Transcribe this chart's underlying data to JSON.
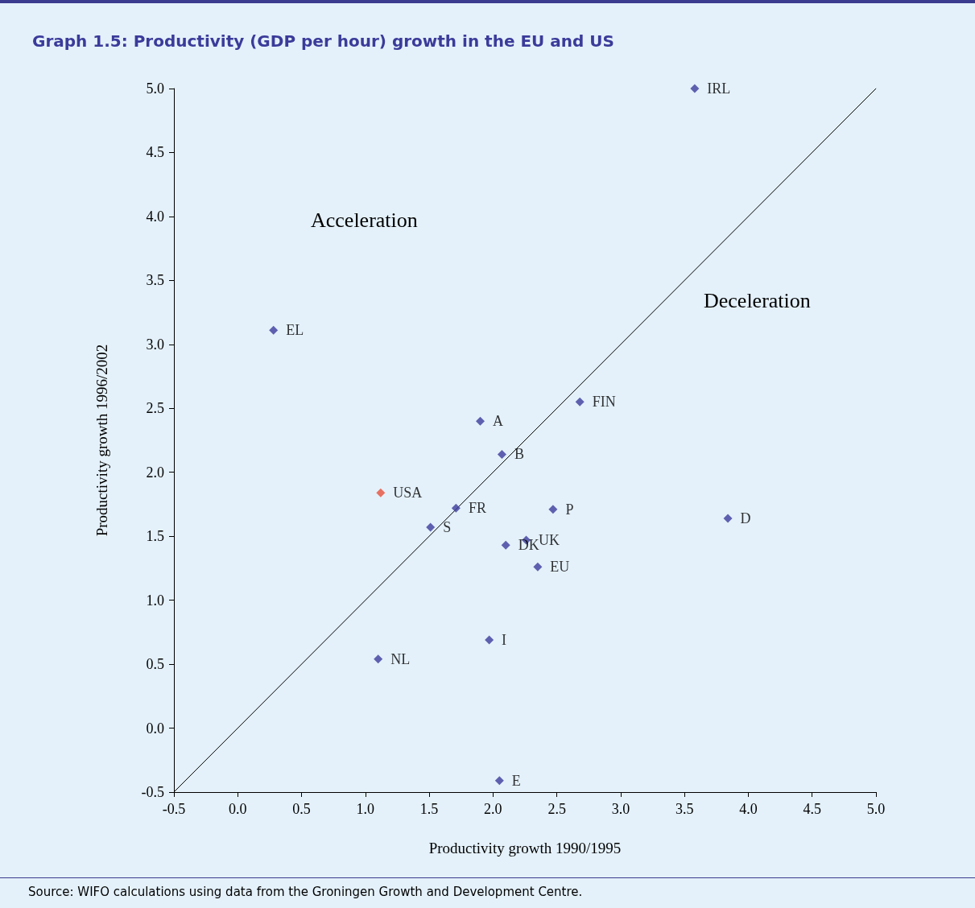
{
  "chart_data": {
    "type": "scatter",
    "title": "Graph 1.5: Productivity (GDP per hour) growth in the EU and US",
    "xlabel": "Productivity growth 1990/1995",
    "ylabel": "Productivity growth 1996/2002",
    "annotations": [
      "Acceleration",
      "Deceleration",
      "Source: WIFO calculations using data from the Groningen Growth and Development Centre."
    ],
    "xlim": [
      -0.5,
      5.0
    ],
    "ylim": [
      -0.5,
      5.0
    ],
    "xticks": [
      {
        "value": -0.5,
        "label": "-0.5"
      },
      {
        "value": 0,
        "label": "0.0"
      },
      {
        "value": 0.5,
        "label": "0.5"
      },
      {
        "value": 1,
        "label": "1.0"
      },
      {
        "value": 1.5,
        "label": "1.5"
      },
      {
        "value": 2,
        "label": "2.0"
      },
      {
        "value": 2.5,
        "label": "2.5"
      },
      {
        "value": 3,
        "label": "3.0"
      },
      {
        "value": 3.5,
        "label": "3.5"
      },
      {
        "value": 4,
        "label": "4.0"
      },
      {
        "value": 4.5,
        "label": "4.5"
      },
      {
        "value": 5,
        "label": "5.0"
      }
    ],
    "yticks": [
      {
        "value": -0.5,
        "label": "-0.5"
      },
      {
        "value": 0,
        "label": "0.0"
      },
      {
        "value": 0.5,
        "label": "0.5"
      },
      {
        "value": 1,
        "label": "1.0"
      },
      {
        "value": 1.5,
        "label": "1.5"
      },
      {
        "value": 2,
        "label": "2.0"
      },
      {
        "value": 2.5,
        "label": "2.5"
      },
      {
        "value": 3,
        "label": "3.0"
      },
      {
        "value": 3.5,
        "label": "3.5"
      },
      {
        "value": 4,
        "label": "4.0"
      },
      {
        "value": 4.5,
        "label": "4.5"
      },
      {
        "value": 5,
        "label": "5.0"
      }
    ],
    "grid": false,
    "legend": false,
    "marker": "diamond",
    "series": [
      {
        "name": "IRL",
        "color": "#3c3c9c",
        "x": [
          3.58
        ],
        "values": [
          5.0
        ]
      },
      {
        "name": "EL",
        "color": "#3c3c9c",
        "x": [
          0.28
        ],
        "values": [
          3.11
        ]
      },
      {
        "name": "A",
        "color": "#3c3c9c",
        "x": [
          1.9
        ],
        "values": [
          2.4
        ]
      },
      {
        "name": "FIN",
        "color": "#3c3c9c",
        "x": [
          2.68
        ],
        "values": [
          2.55
        ]
      },
      {
        "name": "B",
        "color": "#3c3c9c",
        "x": [
          2.07
        ],
        "values": [
          2.14
        ]
      },
      {
        "name": "USA",
        "color": "#e8503a",
        "x": [
          1.12
        ],
        "values": [
          1.84
        ]
      },
      {
        "name": "FR",
        "color": "#3c3c9c",
        "x": [
          1.71
        ],
        "values": [
          1.72
        ]
      },
      {
        "name": "P",
        "color": "#3c3c9c",
        "x": [
          2.47
        ],
        "values": [
          1.71
        ]
      },
      {
        "name": "D",
        "color": "#3c3c9c",
        "x": [
          3.84
        ],
        "values": [
          1.64
        ]
      },
      {
        "name": "S",
        "color": "#3c3c9c",
        "x": [
          1.51
        ],
        "values": [
          1.57
        ]
      },
      {
        "name": "UK",
        "color": "#3c3c9c",
        "x": [
          2.26
        ],
        "values": [
          1.47
        ]
      },
      {
        "name": "DK",
        "color": "#3c3c9c",
        "x": [
          2.1
        ],
        "values": [
          1.43
        ]
      },
      {
        "name": "EU",
        "color": "#3c3c9c",
        "x": [
          2.35
        ],
        "values": [
          1.26
        ]
      },
      {
        "name": "I",
        "color": "#3c3c9c",
        "x": [
          1.97
        ],
        "values": [
          0.69
        ]
      },
      {
        "name": "NL",
        "color": "#3c3c9c",
        "x": [
          1.1
        ],
        "values": [
          0.54
        ]
      },
      {
        "name": "E",
        "color": "#3c3c9c",
        "x": [
          2.05
        ],
        "values": [
          -0.41
        ]
      },
      {
        "type": "line",
        "color": "#000000",
        "marker": "none",
        "x": [
          -0.5,
          5.0
        ],
        "values": [
          -0.5,
          5.0
        ]
      }
    ]
  }
}
